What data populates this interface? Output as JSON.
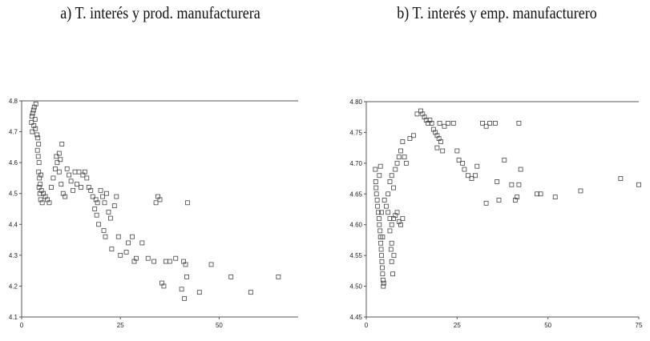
{
  "chart_data": [
    {
      "type": "scatter",
      "title": "a) T. interés y prod. manufacturera",
      "xlabel": "",
      "ylabel": "",
      "xlim": [
        0,
        70
      ],
      "ylim": [
        4.1,
        4.8
      ],
      "x_ticks": [
        "0",
        "25",
        "50"
      ],
      "y_ticks": [
        "4.1",
        "4.2",
        "4.3",
        "4.4",
        "4.5",
        "4.6",
        "4.7",
        "4.8"
      ],
      "marker": "square",
      "points": [
        [
          2.5,
          4.73
        ],
        [
          2.6,
          4.75
        ],
        [
          2.8,
          4.76
        ],
        [
          3.0,
          4.77
        ],
        [
          3.2,
          4.78
        ],
        [
          3.4,
          4.74
        ],
        [
          3.6,
          4.79
        ],
        [
          2.7,
          4.7
        ],
        [
          3.1,
          4.72
        ],
        [
          3.5,
          4.71
        ],
        [
          3.9,
          4.69
        ],
        [
          4.1,
          4.68
        ],
        [
          4.3,
          4.66
        ],
        [
          4.0,
          4.64
        ],
        [
          4.2,
          4.62
        ],
        [
          4.4,
          4.6
        ],
        [
          4.3,
          4.57
        ],
        [
          4.5,
          4.55
        ],
        [
          4.4,
          4.52
        ],
        [
          4.6,
          4.5
        ],
        [
          4.8,
          4.48
        ],
        [
          5.2,
          4.47
        ],
        [
          4.7,
          4.53
        ],
        [
          4.9,
          4.56
        ],
        [
          5.0,
          4.51
        ],
        [
          5.5,
          4.5
        ],
        [
          6.0,
          4.49
        ],
        [
          6.5,
          4.48
        ],
        [
          7.0,
          4.47
        ],
        [
          7.5,
          4.52
        ],
        [
          8.0,
          4.55
        ],
        [
          8.5,
          4.58
        ],
        [
          9.0,
          4.6
        ],
        [
          9.5,
          4.57
        ],
        [
          10.0,
          4.53
        ],
        [
          10.5,
          4.5
        ],
        [
          11.0,
          4.49
        ],
        [
          9.5,
          4.63
        ],
        [
          9.8,
          4.61
        ],
        [
          10.2,
          4.66
        ],
        [
          8.8,
          4.62
        ],
        [
          11.5,
          4.58
        ],
        [
          12.0,
          4.56
        ],
        [
          12.5,
          4.54
        ],
        [
          13.0,
          4.51
        ],
        [
          14.0,
          4.53
        ],
        [
          15.0,
          4.52
        ],
        [
          13.5,
          4.57
        ],
        [
          14.5,
          4.57
        ],
        [
          15.5,
          4.56
        ],
        [
          16.0,
          4.57
        ],
        [
          16.5,
          4.55
        ],
        [
          17.0,
          4.52
        ],
        [
          17.5,
          4.51
        ],
        [
          18.0,
          4.49
        ],
        [
          18.5,
          4.45
        ],
        [
          19.0,
          4.43
        ],
        [
          19.5,
          4.4
        ],
        [
          18.8,
          4.48
        ],
        [
          19.2,
          4.47
        ],
        [
          20.0,
          4.51
        ],
        [
          20.5,
          4.49
        ],
        [
          21.0,
          4.47
        ],
        [
          21.5,
          4.5
        ],
        [
          22.0,
          4.44
        ],
        [
          20.8,
          4.38
        ],
        [
          21.2,
          4.36
        ],
        [
          22.5,
          4.42
        ],
        [
          23.5,
          4.46
        ],
        [
          24.0,
          4.49
        ],
        [
          22.8,
          4.32
        ],
        [
          24.5,
          4.36
        ],
        [
          25.0,
          4.3
        ],
        [
          26.5,
          4.31
        ],
        [
          27.0,
          4.34
        ],
        [
          28.0,
          4.36
        ],
        [
          28.5,
          4.28
        ],
        [
          29.0,
          4.29
        ],
        [
          30.5,
          4.34
        ],
        [
          32.0,
          4.29
        ],
        [
          33.5,
          4.28
        ],
        [
          34.0,
          4.47
        ],
        [
          34.5,
          4.49
        ],
        [
          35.0,
          4.48
        ],
        [
          35.5,
          4.21
        ],
        [
          36.0,
          4.2
        ],
        [
          36.5,
          4.28
        ],
        [
          37.5,
          4.28
        ],
        [
          39.0,
          4.29
        ],
        [
          40.5,
          4.19
        ],
        [
          41.0,
          4.28
        ],
        [
          41.5,
          4.27
        ],
        [
          41.2,
          4.16
        ],
        [
          41.8,
          4.23
        ],
        [
          42.0,
          4.47
        ],
        [
          45.0,
          4.18
        ],
        [
          48.0,
          4.27
        ],
        [
          53.0,
          4.23
        ],
        [
          58.0,
          4.18
        ],
        [
          65.0,
          4.23
        ]
      ]
    },
    {
      "type": "scatter",
      "title": "b) T. interés y emp. manufacturero",
      "xlabel": "",
      "ylabel": "",
      "xlim": [
        0,
        75
      ],
      "ylim": [
        4.45,
        4.8
      ],
      "x_ticks": [
        "0",
        "25",
        "50",
        "75"
      ],
      "y_ticks": [
        "4.45",
        "4.50",
        "4.55",
        "4.60",
        "4.65",
        "4.70",
        "4.75",
        "4.80"
      ],
      "marker": "square",
      "points": [
        [
          2.5,
          4.69
        ],
        [
          2.6,
          4.67
        ],
        [
          2.7,
          4.66
        ],
        [
          2.8,
          4.65
        ],
        [
          3.0,
          4.64
        ],
        [
          3.1,
          4.63
        ],
        [
          3.3,
          4.62
        ],
        [
          3.5,
          4.61
        ],
        [
          3.6,
          4.6
        ],
        [
          3.8,
          4.59
        ],
        [
          3.9,
          4.58
        ],
        [
          4.0,
          4.57
        ],
        [
          4.1,
          4.56
        ],
        [
          4.2,
          4.55
        ],
        [
          4.3,
          4.54
        ],
        [
          4.4,
          4.53
        ],
        [
          4.5,
          4.52
        ],
        [
          4.6,
          4.51
        ],
        [
          4.7,
          4.5
        ],
        [
          4.8,
          4.505
        ],
        [
          4.5,
          4.58
        ],
        [
          4.2,
          4.62
        ],
        [
          3.6,
          4.68
        ],
        [
          3.9,
          4.695
        ],
        [
          5.0,
          4.64
        ],
        [
          5.5,
          4.63
        ],
        [
          6.0,
          4.62
        ],
        [
          6.5,
          4.61
        ],
        [
          7.0,
          4.6
        ],
        [
          7.5,
          4.61
        ],
        [
          8.0,
          4.615
        ],
        [
          8.5,
          4.62
        ],
        [
          9.0,
          4.605
        ],
        [
          9.5,
          4.6
        ],
        [
          10.0,
          4.61
        ],
        [
          6.5,
          4.59
        ],
        [
          6.8,
          4.56
        ],
        [
          7.0,
          4.54
        ],
        [
          7.3,
          4.52
        ],
        [
          7.6,
          4.55
        ],
        [
          7.0,
          4.57
        ],
        [
          6.0,
          4.65
        ],
        [
          6.5,
          4.67
        ],
        [
          7.0,
          4.68
        ],
        [
          7.5,
          4.66
        ],
        [
          8.0,
          4.69
        ],
        [
          8.5,
          4.7
        ],
        [
          9.0,
          4.71
        ],
        [
          9.5,
          4.72
        ],
        [
          10.0,
          4.735
        ],
        [
          10.5,
          4.71
        ],
        [
          11.0,
          4.7
        ],
        [
          12.0,
          4.74
        ],
        [
          13.0,
          4.745
        ],
        [
          14.0,
          4.78
        ],
        [
          15.0,
          4.785
        ],
        [
          15.5,
          4.78
        ],
        [
          16.0,
          4.775
        ],
        [
          16.5,
          4.77
        ],
        [
          17.0,
          4.765
        ],
        [
          17.5,
          4.77
        ],
        [
          18.0,
          4.765
        ],
        [
          18.5,
          4.755
        ],
        [
          19.0,
          4.75
        ],
        [
          19.5,
          4.745
        ],
        [
          20.0,
          4.74
        ],
        [
          20.5,
          4.735
        ],
        [
          21.0,
          4.72
        ],
        [
          19.5,
          4.725
        ],
        [
          20.2,
          4.765
        ],
        [
          21.5,
          4.76
        ],
        [
          22.5,
          4.765
        ],
        [
          24.0,
          4.765
        ],
        [
          25.0,
          4.72
        ],
        [
          25.5,
          4.705
        ],
        [
          26.5,
          4.7
        ],
        [
          27.0,
          4.69
        ],
        [
          28.0,
          4.68
        ],
        [
          29.0,
          4.675
        ],
        [
          30.0,
          4.68
        ],
        [
          30.5,
          4.695
        ],
        [
          32.0,
          4.765
        ],
        [
          33.0,
          4.76
        ],
        [
          34.0,
          4.765
        ],
        [
          35.5,
          4.765
        ],
        [
          36.0,
          4.67
        ],
        [
          33.0,
          4.635
        ],
        [
          36.5,
          4.64
        ],
        [
          38.0,
          4.705
        ],
        [
          40.0,
          4.665
        ],
        [
          41.0,
          4.64
        ],
        [
          41.5,
          4.645
        ],
        [
          42.0,
          4.665
        ],
        [
          42.5,
          4.69
        ],
        [
          42.0,
          4.765
        ],
        [
          47.0,
          4.65
        ],
        [
          48.0,
          4.65
        ],
        [
          52.0,
          4.645
        ],
        [
          59.0,
          4.655
        ],
        [
          70.0,
          4.675
        ],
        [
          75.0,
          4.665
        ]
      ]
    }
  ]
}
